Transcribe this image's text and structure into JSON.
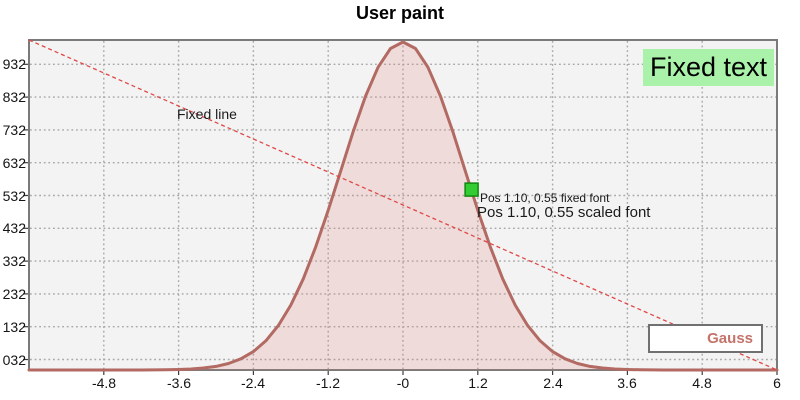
{
  "chart_data": {
    "type": "area",
    "title": "User paint",
    "x_range": [
      -6,
      6
    ],
    "y_range": [
      0,
      1.0
    ],
    "grid": true,
    "legend_position": "bottom-right",
    "x_ticks": [
      {
        "label": "-4.8",
        "value": -4.8
      },
      {
        "label": "-3.6",
        "value": -3.6
      },
      {
        "label": "-2.4",
        "value": -2.4
      },
      {
        "label": "-1.2",
        "value": -1.2
      },
      {
        "label": "-0",
        "value": 0
      },
      {
        "label": "1.2",
        "value": 1.2
      },
      {
        "label": "2.4",
        "value": 2.4
      },
      {
        "label": "3.6",
        "value": 3.6
      },
      {
        "label": "4.8",
        "value": 4.8
      },
      {
        "label": "6",
        "value": 6
      }
    ],
    "y_ticks": [
      {
        "label": "032",
        "value": 0.032
      },
      {
        "label": "132",
        "value": 0.132
      },
      {
        "label": "232",
        "value": 0.232
      },
      {
        "label": "332",
        "value": 0.332
      },
      {
        "label": "432",
        "value": 0.432
      },
      {
        "label": "532",
        "value": 0.532
      },
      {
        "label": "632",
        "value": 0.632
      },
      {
        "label": "732",
        "value": 0.732
      },
      {
        "label": "832",
        "value": 0.832
      },
      {
        "label": "932",
        "value": 0.932
      }
    ],
    "series": [
      {
        "name": "Gauss",
        "line_color": "#b26a63",
        "fill_color": "rgba(226,128,120,0.20)",
        "x": [
          -6,
          -5.8,
          -5.6,
          -5.4,
          -5.2,
          -5,
          -4.8,
          -4.6,
          -4.4,
          -4.2,
          -4,
          -3.8,
          -3.6,
          -3.4,
          -3.2,
          -3,
          -2.8,
          -2.6,
          -2.4,
          -2.2,
          -2,
          -1.8,
          -1.6,
          -1.4,
          -1.2,
          -1,
          -0.8,
          -0.6,
          -0.4,
          -0.2,
          0,
          0.2,
          0.4,
          0.6,
          0.8,
          1,
          1.2,
          1.4,
          1.6,
          1.8,
          2,
          2.2,
          2.4,
          2.6,
          2.8,
          3,
          3.2,
          3.4,
          3.6,
          3.8,
          4,
          4.2,
          4.4,
          4.6,
          4.8,
          5,
          5.2,
          5.4,
          5.6,
          5.8,
          6
        ],
        "y": [
          0,
          0,
          0,
          0,
          0,
          0,
          0,
          0,
          0.0001,
          0.0001,
          0.0003,
          0.0007,
          0.0015,
          0.0031,
          0.006,
          0.0111,
          0.0198,
          0.034,
          0.0561,
          0.0889,
          0.1353,
          0.1979,
          0.278,
          0.3753,
          0.4868,
          0.6065,
          0.7261,
          0.8353,
          0.9231,
          0.9802,
          1,
          0.9802,
          0.9231,
          0.8353,
          0.7261,
          0.6065,
          0.4868,
          0.3753,
          0.278,
          0.1979,
          0.1353,
          0.0889,
          0.0561,
          0.034,
          0.0198,
          0.0111,
          0.006,
          0.0031,
          0.0015,
          0.0007,
          0.0003,
          0.0001,
          0.0001,
          0,
          0,
          0,
          0,
          0,
          0,
          0,
          0
        ]
      }
    ],
    "panel_bg": "#f3f3f3",
    "frame_color": "#7a7a7a",
    "grid_color": "#a8a8a8"
  },
  "annotations": {
    "fixed_text": {
      "label": "Fixed text",
      "bg_color": "#aaf2aa"
    },
    "fixed_line": {
      "label": "Fixed line",
      "color": "#e04848"
    },
    "marker": {
      "x_value": 1.1,
      "y_value": 0.55,
      "fill": "#33cc33",
      "border": "#118811",
      "label_fixed_font": "Pos 1.10, 0.55 fixed font",
      "label_scaled_font": "Pos 1.10, 0.55 scaled font"
    }
  },
  "legend": {
    "items": [
      {
        "label": "Gauss",
        "color": "#c4736b"
      }
    ]
  }
}
